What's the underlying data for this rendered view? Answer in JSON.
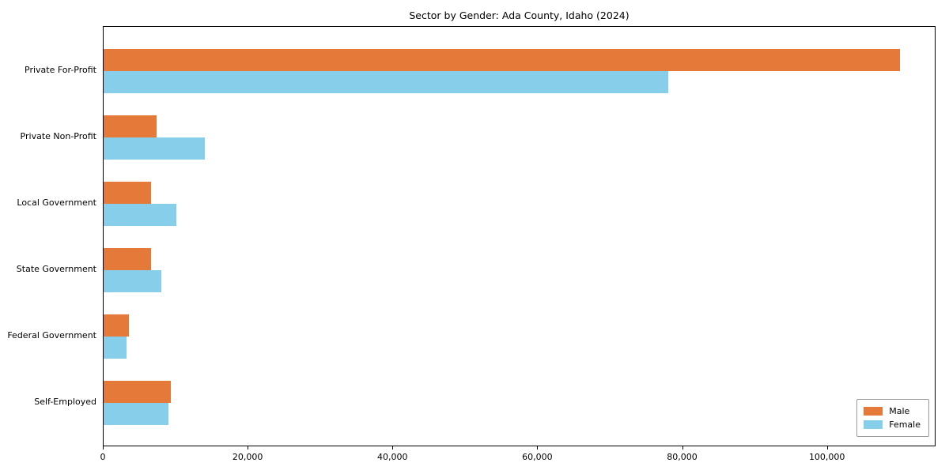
{
  "title": "Sector by Gender: Ada County, Idaho (2024)",
  "chart_data": {
    "type": "bar",
    "orientation": "horizontal",
    "title": "Sector by Gender: Ada County, Idaho (2024)",
    "categories": [
      "Private For-Profit",
      "Private Non-Profit",
      "Local Government",
      "State Government",
      "Federal Government",
      "Self-Employed"
    ],
    "series": [
      {
        "name": "Male",
        "color": "#e5793a",
        "values": [
          110000,
          7300,
          6500,
          6500,
          3500,
          9300
        ]
      },
      {
        "name": "Female",
        "color": "#87ceeb",
        "values": [
          78000,
          14000,
          10000,
          8000,
          3200,
          9000
        ]
      }
    ],
    "xlim": [
      0,
      115000
    ],
    "xticks": [
      0,
      20000,
      40000,
      60000,
      80000,
      100000
    ],
    "xlabel": "",
    "ylabel": "",
    "grid": false,
    "legend_position": "lower right",
    "legend_labels": [
      "Male",
      "Female"
    ]
  }
}
